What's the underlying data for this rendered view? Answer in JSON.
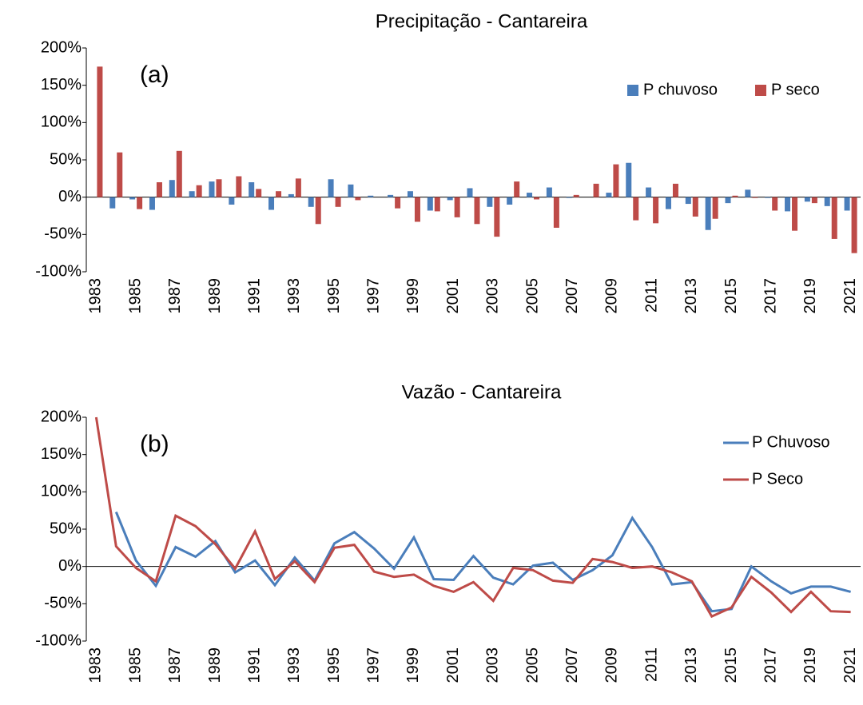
{
  "chart_data": [
    {
      "type": "bar",
      "title": "Precipitação - Cantareira",
      "annotation": "(a)",
      "categories": [
        "1983",
        null,
        "1985",
        null,
        "1987",
        null,
        "1989",
        null,
        "1991",
        null,
        "1993",
        null,
        "1995",
        null,
        "1997",
        null,
        "1999",
        null,
        "2001",
        null,
        "2003",
        null,
        "2005",
        null,
        "2007",
        null,
        "2009",
        null,
        "2011",
        null,
        "2013",
        null,
        "2015",
        null,
        "2017",
        null,
        "2019",
        null,
        "2021"
      ],
      "series": [
        {
          "name": "P chuvoso",
          "color": "#4a7ebb",
          "values": [
            0,
            -15,
            -3,
            -17,
            23,
            8,
            21,
            -10,
            20,
            -17,
            4,
            -13,
            24,
            17,
            2,
            3,
            8,
            -18,
            -4,
            12,
            -13,
            -10,
            6,
            13,
            -1,
            0,
            6,
            46,
            13,
            -16,
            -9,
            -44,
            -8,
            10,
            -1,
            -19,
            -6,
            -12,
            -18
          ]
        },
        {
          "name": "P seco",
          "color": "#be4b48",
          "values": [
            175,
            60,
            -16,
            20,
            62,
            16,
            24,
            28,
            11,
            8,
            25,
            -36,
            -13,
            -4,
            0,
            -15,
            -33,
            -19,
            -27,
            -36,
            -53,
            21,
            -3,
            -41,
            3,
            18,
            44,
            -31,
            -35,
            18,
            -26,
            -29,
            2,
            -1,
            -18,
            -45,
            -8,
            -56,
            -75
          ]
        }
      ],
      "ylim": [
        -100,
        200
      ],
      "yticks": [
        {
          "value": -100,
          "label": "-100%"
        },
        {
          "value": -50,
          "label": "-50%"
        },
        {
          "value": 0,
          "label": "0%"
        },
        {
          "value": 50,
          "label": "50%"
        },
        {
          "value": 100,
          "label": "100%"
        },
        {
          "value": 150,
          "label": "150%"
        },
        {
          "value": 200,
          "label": "200%"
        }
      ],
      "legend": "upper right"
    },
    {
      "type": "line",
      "title": "Vazão - Cantareira",
      "annotation": "(b)",
      "categories": [
        "1983",
        null,
        "1985",
        null,
        "1987",
        null,
        "1989",
        null,
        "1991",
        null,
        "1993",
        null,
        "1995",
        null,
        "1997",
        null,
        "1999",
        null,
        "2001",
        null,
        "2003",
        null,
        "2005",
        null,
        "2007",
        null,
        "2009",
        null,
        "2011",
        null,
        "2013",
        null,
        "2015",
        null,
        "2017",
        null,
        "2019",
        null,
        "2021"
      ],
      "series": [
        {
          "name": "P Chuvoso",
          "color": "#4a7ebb",
          "values": [
            null,
            73,
            8,
            -26,
            26,
            13,
            34,
            -8,
            8,
            -25,
            12,
            -19,
            31,
            46,
            24,
            -3,
            39,
            -17,
            -18,
            14,
            -15,
            -24,
            1,
            5,
            -18,
            -5,
            15,
            65,
            26,
            -24,
            -21,
            -60,
            -57,
            0,
            -20,
            -36,
            -27,
            -27,
            -34
          ]
        },
        {
          "name": "P Seco",
          "color": "#be4b48",
          "values": [
            200,
            27,
            -2,
            -20,
            68,
            54,
            30,
            -3,
            47,
            -17,
            7,
            -21,
            25,
            29,
            -7,
            -14,
            -11,
            -26,
            -34,
            -21,
            -46,
            -2,
            -5,
            -19,
            -22,
            10,
            6,
            -2,
            0,
            -8,
            -20,
            -67,
            -55,
            -14,
            -35,
            -61,
            -34,
            -60,
            -61
          ]
        }
      ],
      "ylim": [
        -100,
        200
      ],
      "yticks": [
        {
          "value": -100,
          "label": "-100%"
        },
        {
          "value": -50,
          "label": "-50%"
        },
        {
          "value": 0,
          "label": "0%"
        },
        {
          "value": 50,
          "label": "50%"
        },
        {
          "value": 100,
          "label": "100%"
        },
        {
          "value": 150,
          "label": "150%"
        },
        {
          "value": 200,
          "label": "200%"
        }
      ],
      "legend": "upper right"
    }
  ]
}
